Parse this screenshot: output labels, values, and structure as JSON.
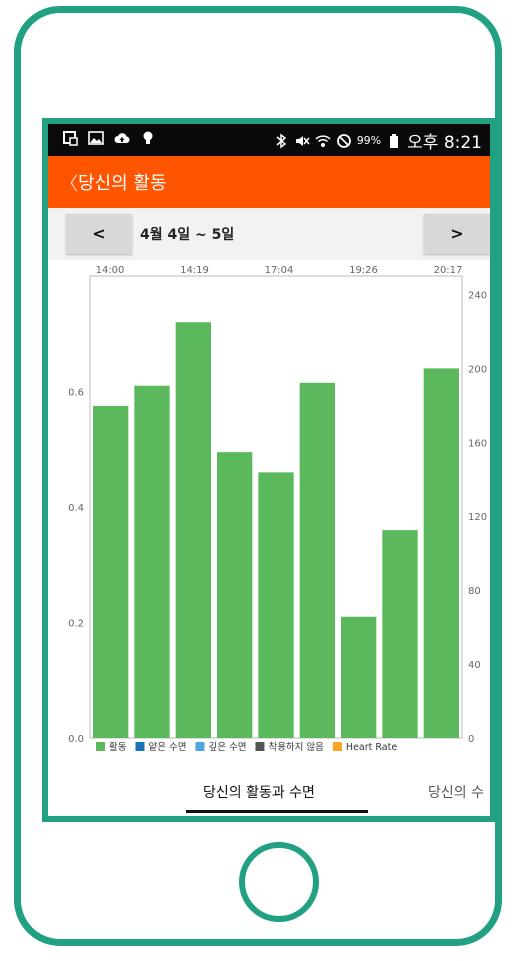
{
  "colors": {
    "frame": "#21a082",
    "appbar": "#ff5500",
    "bar": "#5cb85c",
    "sleep_light": "#1a73b8",
    "sleep_deep": "#4da6e0",
    "not_worn": "#555555",
    "heart_rate": "#f5a623"
  },
  "statusbar": {
    "left_icons": [
      "screenshot-icon",
      "gallery-icon",
      "cloud-upload-icon",
      "bulb-icon"
    ],
    "right_icons": [
      "bluetooth-icon",
      "mute-icon",
      "wifi-icon",
      "block-icon",
      "battery-icon"
    ],
    "battery": "99%",
    "time": "오후 8:21"
  },
  "appbar": {
    "back": "〈",
    "title": "당신의 활동"
  },
  "datebar": {
    "prev": "<",
    "next": ">",
    "range": "4월 4일 ~ 5일"
  },
  "chart_data": {
    "type": "bar",
    "x_tick_labels": [
      "14:00",
      "14:19",
      "17:04",
      "19:26",
      "20:17"
    ],
    "values": [
      0.575,
      0.61,
      0.72,
      0.495,
      0.46,
      0.615,
      0.21,
      0.36,
      0.64
    ],
    "ylim": [
      0,
      0.8
    ],
    "y_ticks": [
      "0.0",
      "0.2",
      "0.4",
      "0.6"
    ],
    "y2_lim": [
      0,
      250
    ],
    "y2_ticks": [
      "0",
      "40",
      "80",
      "120",
      "160",
      "200",
      "240"
    ],
    "legend": [
      {
        "label": "활동",
        "color": "#5cb85c"
      },
      {
        "label": "얕은 수면",
        "color": "#1a73b8"
      },
      {
        "label": "깊은 수면",
        "color": "#4da6e0"
      },
      {
        "label": "착용하지 않음",
        "color": "#555555"
      },
      {
        "label": "Heart Rate",
        "color": "#f5a623"
      }
    ]
  },
  "tabs": {
    "active": "당신의 활동과 수면",
    "next": "당신의 수"
  }
}
